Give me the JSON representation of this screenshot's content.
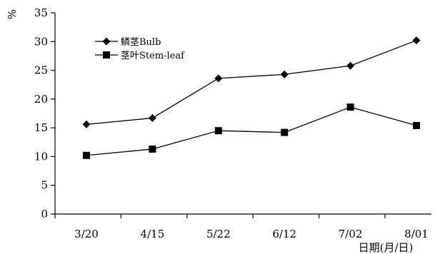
{
  "chart_data": {
    "type": "line",
    "categories": [
      "3/20",
      "4/15",
      "5/22",
      "6/12",
      "7/02",
      "8/01"
    ],
    "series": [
      {
        "name": "鳞茎Bulb",
        "marker": "diamond",
        "values": [
          15.6,
          16.7,
          23.6,
          24.3,
          25.8,
          30.2
        ]
      },
      {
        "name": "茎叶Stem-leaf",
        "marker": "square",
        "values": [
          10.2,
          11.3,
          14.5,
          14.2,
          18.6,
          15.4
        ]
      }
    ],
    "ylabel": "%",
    "xlabel": "日期(月/日)",
    "ylim": [
      0,
      35
    ],
    "yticks": [
      0,
      5,
      10,
      15,
      20,
      25,
      30,
      35
    ],
    "grid": false,
    "legend_position": "top-left",
    "line_color": "#000000"
  }
}
